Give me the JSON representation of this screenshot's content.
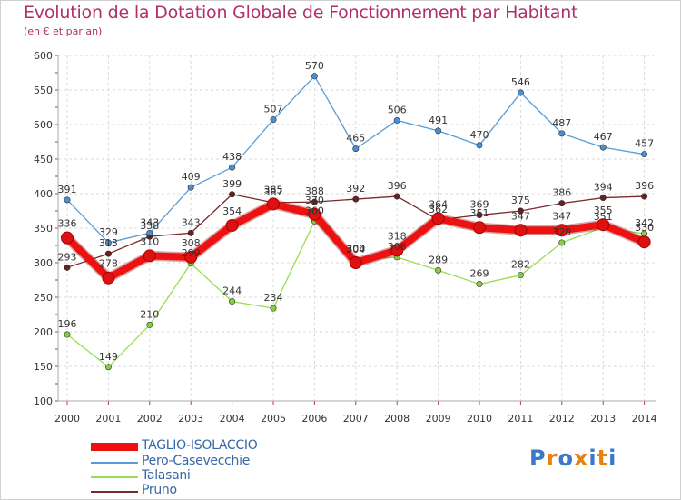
{
  "header": {
    "title": "Evolution de la Dotation Globale de Fonctionnement par Habitant",
    "subtitle": "(en € et par an)"
  },
  "logo": {
    "text": "Proxiti"
  },
  "chart_data": {
    "type": "line",
    "title": "Evolution de la Dotation Globale de Fonctionnement par Habitant",
    "subtitle": "(en € et par an)",
    "xlabel": "",
    "ylabel": "",
    "categories": [
      "2000",
      "2001",
      "2002",
      "2003",
      "2004",
      "2005",
      "2006",
      "2007",
      "2008",
      "2009",
      "2010",
      "2011",
      "2012",
      "2013",
      "2014"
    ],
    "ylim": [
      100,
      600
    ],
    "yticks": [
      100,
      150,
      200,
      250,
      300,
      350,
      400,
      450,
      500,
      550,
      600
    ],
    "grid": true,
    "legend_position": "bottom-left",
    "series": [
      {
        "name": "TAGLIO-ISOLACCIO",
        "color": "#ee1111",
        "values": [
          336,
          278,
          310,
          308,
          354,
          385,
          370,
          300,
          318,
          364,
          351,
          347,
          347,
          355,
          330
        ]
      },
      {
        "name": "Pero-Casevecchie",
        "color": "#5b9bd5",
        "values": [
          391,
          329,
          343,
          409,
          438,
          507,
          570,
          465,
          506,
          491,
          470,
          546,
          487,
          467,
          457
        ]
      },
      {
        "name": "Talasani",
        "color": "#99dd55",
        "values": [
          196,
          149,
          210,
          299,
          244,
          234,
          360,
          304,
          308,
          289,
          269,
          282,
          329,
          351,
          342
        ]
      },
      {
        "name": "Pruno",
        "color": "#7a2a2a",
        "values": [
          293,
          313,
          338,
          343,
          399,
          387,
          388,
          392,
          396,
          362,
          369,
          375,
          386,
          394,
          396
        ]
      }
    ]
  }
}
